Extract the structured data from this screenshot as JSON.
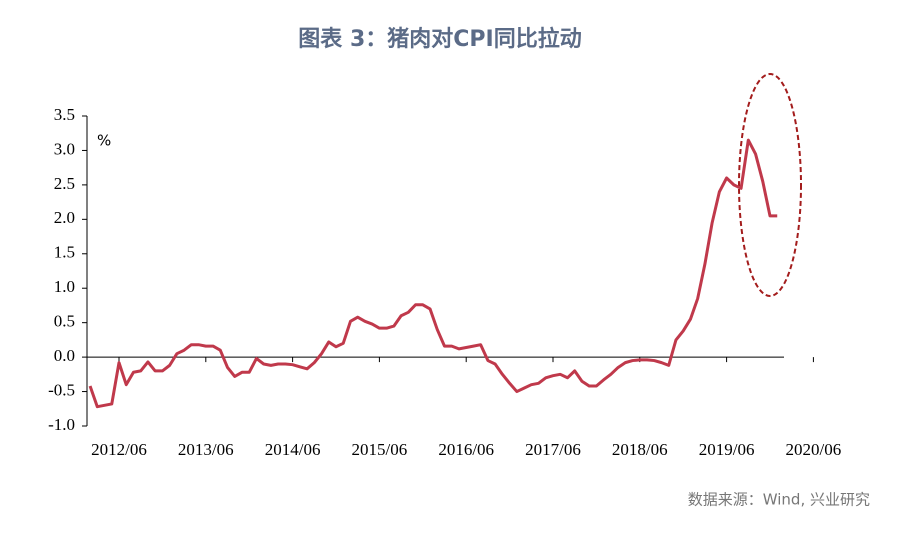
{
  "chart_data": {
    "type": "line",
    "title": "图表 3：猪肉对CPI同比拉动",
    "y_label": "%",
    "source": "数据来源：Wind, 兴业研究",
    "x": [
      "2012/02",
      "2012/03",
      "2012/04",
      "2012/05",
      "2012/06",
      "2012/07",
      "2012/08",
      "2012/09",
      "2012/10",
      "2012/11",
      "2012/12",
      "2013/01",
      "2013/02",
      "2013/03",
      "2013/04",
      "2013/05",
      "2013/06",
      "2013/07",
      "2013/08",
      "2013/09",
      "2013/10",
      "2013/11",
      "2013/12",
      "2014/01",
      "2014/02",
      "2014/03",
      "2014/04",
      "2014/05",
      "2014/06",
      "2014/07",
      "2014/08",
      "2014/09",
      "2014/10",
      "2014/11",
      "2014/12",
      "2015/01",
      "2015/02",
      "2015/03",
      "2015/04",
      "2015/05",
      "2015/06",
      "2015/07",
      "2015/08",
      "2015/09",
      "2015/10",
      "2015/11",
      "2015/12",
      "2016/01",
      "2016/02",
      "2016/03",
      "2016/04",
      "2016/05",
      "2016/06",
      "2016/07",
      "2016/08",
      "2016/09",
      "2016/10",
      "2016/11",
      "2016/12",
      "2017/01",
      "2017/02",
      "2017/03",
      "2017/04",
      "2017/05",
      "2017/06",
      "2017/07",
      "2017/08",
      "2017/09",
      "2017/10",
      "2017/11",
      "2017/12",
      "2018/01",
      "2018/02",
      "2018/03",
      "2018/04",
      "2018/05",
      "2018/06",
      "2018/07",
      "2018/08",
      "2018/09",
      "2018/10",
      "2018/11",
      "2018/12",
      "2019/01",
      "2019/02",
      "2019/03",
      "2019/04",
      "2019/05",
      "2019/06",
      "2019/07",
      "2019/08",
      "2019/09",
      "2019/10",
      "2019/11",
      "2019/12",
      "2020/01"
    ],
    "series": [
      {
        "name": "猪肉对CPI同比拉动",
        "color": "#c0394b",
        "values": [
          -0.42,
          -0.72,
          -0.7,
          -0.68,
          -0.08,
          -0.4,
          -0.22,
          -0.2,
          -0.07,
          -0.2,
          -0.2,
          -0.12,
          0.05,
          0.1,
          0.18,
          0.18,
          0.16,
          0.16,
          0.1,
          -0.15,
          -0.28,
          -0.22,
          -0.22,
          -0.02,
          -0.1,
          -0.12,
          -0.1,
          -0.1,
          -0.11,
          -0.14,
          -0.17,
          -0.08,
          0.05,
          0.22,
          0.15,
          0.2,
          0.52,
          0.58,
          0.52,
          0.48,
          0.42,
          0.42,
          0.45,
          0.6,
          0.65,
          0.76,
          0.76,
          0.7,
          0.4,
          0.16,
          0.16,
          0.12,
          0.14,
          0.16,
          0.18,
          -0.05,
          -0.1,
          -0.25,
          -0.38,
          -0.5,
          -0.45,
          -0.4,
          -0.38,
          -0.3,
          -0.27,
          -0.25,
          -0.3,
          -0.2,
          -0.35,
          -0.42,
          -0.42,
          -0.33,
          -0.25,
          -0.15,
          -0.08,
          -0.05,
          -0.04,
          -0.04,
          -0.05,
          -0.08,
          -0.12,
          0.25,
          0.38,
          0.55,
          0.85,
          1.35,
          1.95,
          2.4,
          2.6,
          2.5,
          2.45,
          3.15,
          2.95,
          2.55,
          2.05,
          2.05
        ]
      }
    ],
    "xticks": [
      "2012/06",
      "2013/06",
      "2014/06",
      "2015/06",
      "2016/06",
      "2017/06",
      "2018/06",
      "2019/06",
      "2020/06"
    ],
    "ylim": [
      -1,
      3.5
    ],
    "yticks": [
      {
        "value": -1,
        "label": "-1.0"
      },
      -0.5,
      {
        "value": 0,
        "label": "0.0"
      },
      0.5,
      {
        "value": 1,
        "label": "1.0"
      },
      1.5,
      {
        "value": 2,
        "label": "2.0"
      },
      2.5,
      {
        "value": 3,
        "label": "3.0"
      },
      3.5
    ]
  }
}
